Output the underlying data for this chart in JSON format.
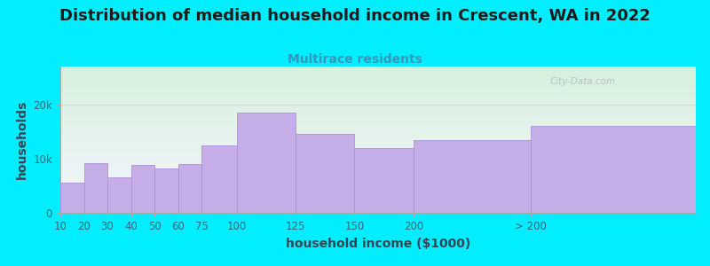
{
  "title": "Distribution of median household income in Crescent, WA in 2022",
  "subtitle": "Multirace residents",
  "xlabel": "household income ($1000)",
  "ylabel": "households",
  "background_outer": "#00eeff",
  "background_inner_top": "#d6f0dc",
  "background_inner_bottom": "#f5f5ff",
  "bar_color": "#c5aee8",
  "bar_edge_color": "#b090d8",
  "categories": [
    "10",
    "20",
    "30",
    "40",
    "50",
    "60",
    "75",
    "100",
    "125",
    "150",
    "200",
    "> 200"
  ],
  "values": [
    5500,
    9200,
    6500,
    8800,
    8200,
    9000,
    12500,
    18500,
    14500,
    12000,
    13500,
    16000
  ],
  "ylim": [
    0,
    27000
  ],
  "yticks": [
    0,
    10000,
    20000
  ],
  "ytick_labels": [
    "0",
    "10k",
    "20k"
  ],
  "title_fontsize": 13,
  "subtitle_fontsize": 10,
  "axis_label_fontsize": 10,
  "tick_fontsize": 8.5,
  "title_color": "#1a1a1a",
  "subtitle_color": "#3399bb",
  "tick_color": "#336677",
  "axis_label_color": "#334455",
  "watermark_text": "City-Data.com",
  "bar_widths": [
    1,
    1,
    1,
    1,
    1,
    1,
    1.5,
    2.5,
    2.5,
    2.5,
    5,
    7
  ]
}
